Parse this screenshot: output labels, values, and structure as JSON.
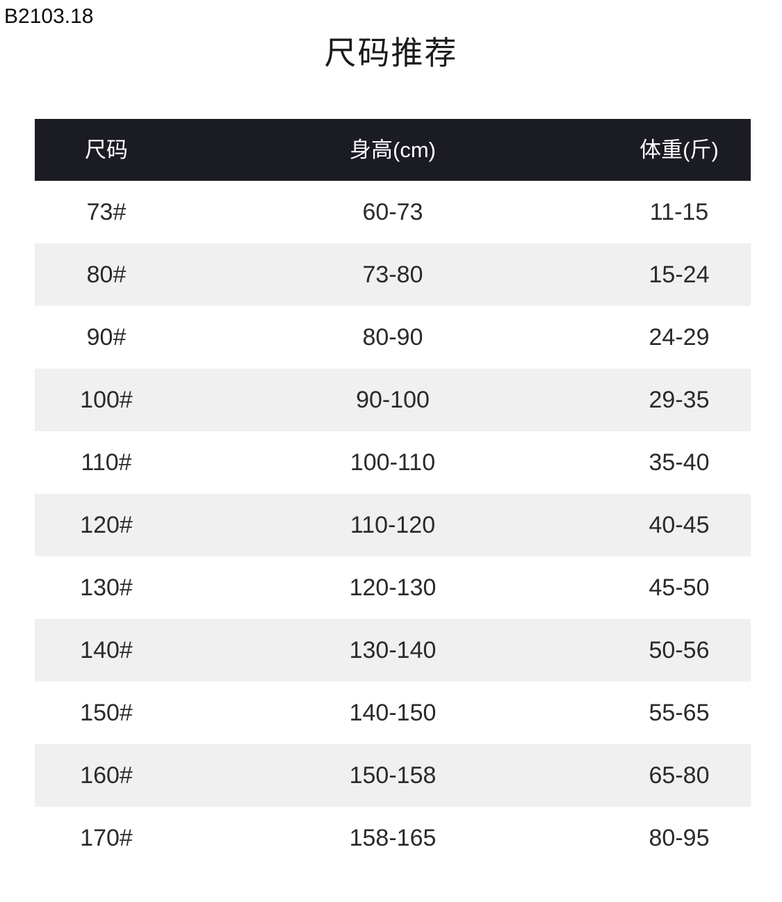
{
  "page": {
    "product_code": "B2103.18",
    "title": "尺码推荐"
  },
  "table": {
    "headers": [
      "尺码",
      "身高(cm)",
      "体重(斤)"
    ],
    "rows": [
      [
        "73#",
        "60-73",
        "11-15"
      ],
      [
        "80#",
        "73-80",
        "15-24"
      ],
      [
        "90#",
        "80-90",
        "24-29"
      ],
      [
        "100#",
        "90-100",
        "29-35"
      ],
      [
        "110#",
        "100-110",
        "35-40"
      ],
      [
        "120#",
        "110-120",
        "40-45"
      ],
      [
        "130#",
        "120-130",
        "45-50"
      ],
      [
        "140#",
        "130-140",
        "50-56"
      ],
      [
        "150#",
        "140-150",
        "55-65"
      ],
      [
        "160#",
        "150-158",
        "65-80"
      ],
      [
        "170#",
        "158-165",
        "80-95"
      ]
    ],
    "colors": {
      "header_bg": "#1b1b24",
      "header_text": "#ffffff",
      "row_alt_bg": "#f0f0f0",
      "body_text": "#2a2a2a"
    }
  }
}
